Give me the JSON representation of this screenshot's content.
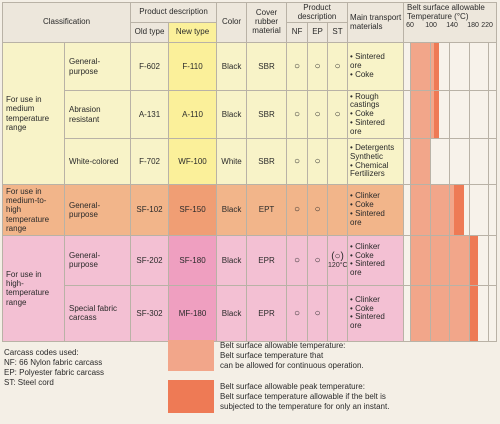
{
  "header": {
    "classification": "Classification",
    "product_description": "Product description",
    "old_type": "Old type",
    "new_type": "New type",
    "color": "Color",
    "cover_rubber": "Cover rubber material",
    "product_description2": "Product description",
    "nf": "NF",
    "ep": "EP",
    "st": "ST",
    "main_transport": "Main transport materials",
    "belt_temp": "Belt surface allowable Temperature (°C)",
    "ticks": [
      "60",
      "100",
      "140",
      "180",
      "220"
    ]
  },
  "groups": [
    {
      "label": "For use in medium temperature range"
    },
    {
      "label": "For use in medium-to-high temperature range"
    },
    {
      "label": "For use in high-temperature range"
    }
  ],
  "rows": [
    {
      "sub": "General-purpose",
      "old": "F-602",
      "new": "F-110",
      "color": "Black",
      "rubber": "SBR",
      "nf": "○",
      "ep": "○",
      "st": "○",
      "st_note": "",
      "materials": [
        "• Sintered",
        "  ore",
        "• Coke"
      ],
      "cont": 110,
      "peak": 120
    },
    {
      "sub": "Abrasion resistant",
      "old": "A-131",
      "new": "A-110",
      "color": "Black",
      "rubber": "SBR",
      "nf": "○",
      "ep": "○",
      "st": "○",
      "st_note": "",
      "materials": [
        "• Rough",
        "  castings",
        "• Coke",
        "• Sintered",
        "  ore"
      ],
      "cont": 110,
      "peak": 120
    },
    {
      "sub": "White-colored",
      "old": "F-702",
      "new": "WF-100",
      "color": "White",
      "rubber": "SBR",
      "nf": "○",
      "ep": "○",
      "st": "",
      "st_note": "",
      "materials": [
        "• Detergents",
        "  Synthetic",
        "• Chemical",
        "  Fertilizers"
      ],
      "cont": 100,
      "peak": 100
    },
    {
      "sub": "General-purpose",
      "old": "SF-102",
      "new": "SF-150",
      "color": "Black",
      "rubber": "EPT",
      "nf": "○",
      "ep": "○",
      "st": "",
      "st_note": "",
      "materials": [
        "• Clinker",
        "• Coke",
        "• Sintered",
        "  ore"
      ],
      "cont": 150,
      "peak": 170
    },
    {
      "sub": "General-purpose",
      "old": "SF-202",
      "new": "SF-180",
      "color": "Black",
      "rubber": "EPR",
      "nf": "○",
      "ep": "○",
      "st": "(○)",
      "st_note": "120°C",
      "materials": [
        "• Clinker",
        "• Coke",
        "• Sintered",
        "  ore"
      ],
      "cont": 180,
      "peak": 200
    },
    {
      "sub": "Special fabric carcass",
      "old": "SF-302",
      "new": "MF-180",
      "color": "Black",
      "rubber": "EPR",
      "nf": "○",
      "ep": "○",
      "st": "",
      "st_note": "",
      "materials": [
        "• Clinker",
        "• Coke",
        "• Sintered",
        "  ore"
      ],
      "cont": 180,
      "peak": 200
    }
  ],
  "carcass_codes": {
    "title": "Carcass codes used:",
    "nf": "NF: 66 Nylon fabric carcass",
    "ep": "EP: Polyester fabric carcass",
    "st": "ST: Steel cord"
  },
  "legend": {
    "cont_1": "Belt surface allowable temperature:",
    "cont_2": "Belt surface temperature that",
    "cont_3": "can be allowed for continuous operation.",
    "peak_1": "Belt surface allowable peak temperature:",
    "peak_2": "Belt surface temperature allowable if the belt is",
    "peak_3": "subjected to the temperature for only an instant."
  },
  "colors": {
    "medium": "#f8f3c8",
    "medium_new": "#fbf09a",
    "midhigh": "#f2b58a",
    "midhigh_new": "#f09e74",
    "high": "#f3c0d3",
    "high_new": "#ef9fc0",
    "cont_bar": "#f2a68a",
    "peak_bar": "#ee7a55"
  }
}
